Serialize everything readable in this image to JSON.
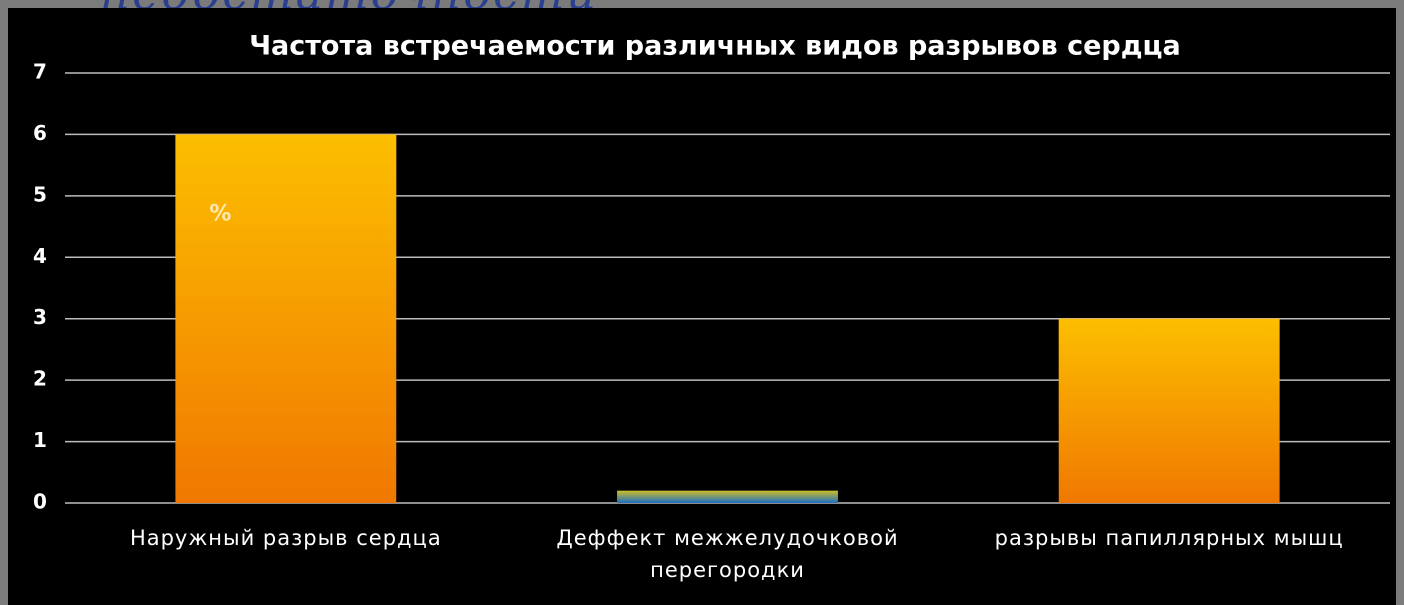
{
  "header": {
    "title": "недостаточности"
  },
  "chart_data": {
    "type": "bar",
    "title": "Частота встречаемости различных видов разрывов сердца",
    "categories": [
      "Наружный разрыв сердца",
      "Деффект межжелудочковой перегородки",
      "разрывы папиллярных мышц"
    ],
    "values": [
      6,
      0.2,
      3
    ],
    "colors": [
      "#f07800",
      "#1a6fc4",
      "#f07800"
    ],
    "annotation": "%",
    "ylim": [
      0,
      7
    ],
    "yticks": [
      0,
      1,
      2,
      3,
      4,
      5,
      6,
      7
    ],
    "grid": true
  }
}
